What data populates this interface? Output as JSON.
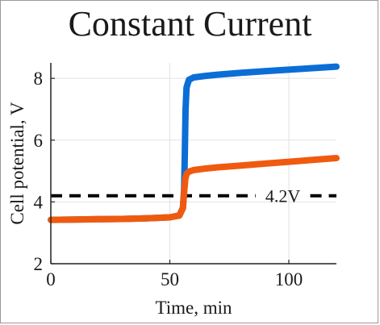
{
  "chart_data": {
    "type": "line",
    "title": "Constant Current",
    "xlabel": "Time, min",
    "ylabel": "Cell potential, V",
    "xlim": [
      0,
      120
    ],
    "ylim": [
      2,
      8.5
    ],
    "xticks": [
      0,
      50,
      100
    ],
    "yticks": [
      2,
      4,
      6,
      8
    ],
    "grid": true,
    "series": [
      {
        "color": "#0a6ed6",
        "x": [
          0,
          10,
          20,
          30,
          40,
          50,
          54,
          55.5,
          56,
          56.3,
          56.6,
          57,
          58,
          60,
          65,
          70,
          80,
          90,
          100,
          110,
          120
        ],
        "y": [
          3.42,
          3.43,
          3.44,
          3.45,
          3.47,
          3.5,
          3.56,
          3.8,
          4.4,
          5.6,
          7.0,
          7.7,
          7.95,
          8.03,
          8.08,
          8.12,
          8.18,
          8.23,
          8.28,
          8.33,
          8.38
        ]
      },
      {
        "color": "#f05a0f",
        "x": [
          0,
          10,
          20,
          30,
          40,
          50,
          54,
          55.5,
          56,
          56.5,
          57,
          58,
          60,
          65,
          70,
          80,
          90,
          100,
          110,
          120
        ],
        "y": [
          3.42,
          3.43,
          3.44,
          3.45,
          3.47,
          3.5,
          3.56,
          3.8,
          4.3,
          4.75,
          4.9,
          4.98,
          5.03,
          5.08,
          5.12,
          5.18,
          5.24,
          5.3,
          5.36,
          5.42
        ]
      }
    ],
    "reference_line": {
      "y": 4.2,
      "label": "4.2V",
      "style": "dashed",
      "color": "#000000"
    }
  }
}
